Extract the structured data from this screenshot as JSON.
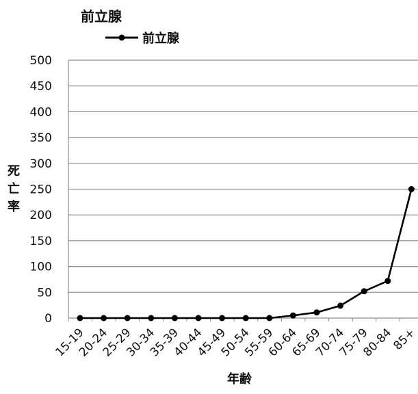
{
  "chart_data": {
    "type": "line",
    "title": "前立腺",
    "xlabel": "年齢",
    "ylabel": "死亡率",
    "categories": [
      "15-19",
      "20-24",
      "25-29",
      "30-34",
      "35-39",
      "40-44",
      "45-49",
      "50-54",
      "55-59",
      "60-64",
      "65-69",
      "70-74",
      "75-79",
      "80-84",
      "85+"
    ],
    "series": [
      {
        "name": "前立腺",
        "values": [
          0,
          0,
          0,
          0,
          0,
          0,
          0,
          0,
          0,
          5,
          11,
          24,
          52,
          72,
          250
        ]
      }
    ],
    "ylim": [
      0,
      500
    ],
    "yticks": [
      0,
      50,
      100,
      150,
      200,
      250,
      300,
      350,
      400,
      450,
      500
    ],
    "grid": true,
    "legend_position": "top-left",
    "line_color": "#000000"
  }
}
